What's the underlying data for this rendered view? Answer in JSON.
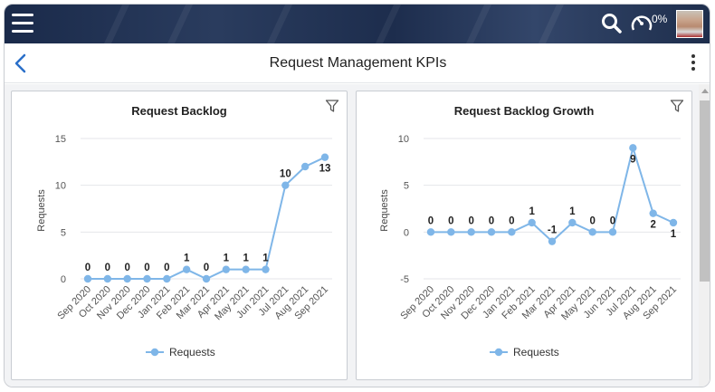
{
  "header": {
    "gauge_percent": "0%"
  },
  "page": {
    "title": "Request Management KPIs"
  },
  "icons": {
    "menu": "hamburger-menu-icon",
    "search": "search-icon",
    "gauge": "gauge-icon",
    "back": "chevron-left-icon",
    "more": "more-vertical-icon",
    "filter": "filter-icon"
  },
  "colors": {
    "series": "#7fb6e8",
    "header_bg": "#1e2e4c",
    "back_arrow": "#2a6fc9"
  },
  "chart_data": [
    {
      "type": "line",
      "title": "Request Backlog",
      "ylabel": "Requests",
      "xlabel": "",
      "ylim": [
        0,
        15
      ],
      "yticks": [
        0,
        5,
        10,
        15
      ],
      "categories": [
        "Sep 2020",
        "Oct 2020",
        "Nov 2020",
        "Dec 2020",
        "Jan 2021",
        "Feb 2021",
        "Mar 2021",
        "Apr 2021",
        "May 2021",
        "Jun 2021",
        "Jul 2021",
        "Aug 2021",
        "Sep 2021"
      ],
      "series": [
        {
          "name": "Requests",
          "values": [
            0,
            0,
            0,
            0,
            0,
            1,
            0,
            1,
            1,
            1,
            10,
            12,
            13
          ]
        }
      ],
      "data_labels": [
        "0",
        "0",
        "0",
        "0",
        "0",
        "1",
        "0",
        "1",
        "1",
        "1",
        "10",
        "",
        "13"
      ],
      "legend": "bottom",
      "grid": true
    },
    {
      "type": "line",
      "title": "Request Backlog Growth",
      "ylabel": "Requests",
      "xlabel": "",
      "ylim": [
        -5,
        10
      ],
      "yticks": [
        -5,
        0,
        5,
        10
      ],
      "categories": [
        "Sep 2020",
        "Oct 2020",
        "Nov 2020",
        "Dec 2020",
        "Jan 2021",
        "Feb 2021",
        "Mar 2021",
        "Apr 2021",
        "May 2021",
        "Jun 2021",
        "Jul 2021",
        "Aug 2021",
        "Sep 2021"
      ],
      "series": [
        {
          "name": "Requests",
          "values": [
            0,
            0,
            0,
            0,
            0,
            1,
            -1,
            1,
            0,
            0,
            9,
            2,
            1
          ]
        }
      ],
      "data_labels": [
        "0",
        "0",
        "0",
        "0",
        "0",
        "1",
        "-1",
        "1",
        "0",
        "0",
        "9",
        "2",
        "1"
      ],
      "legend": "bottom",
      "grid": true
    }
  ]
}
